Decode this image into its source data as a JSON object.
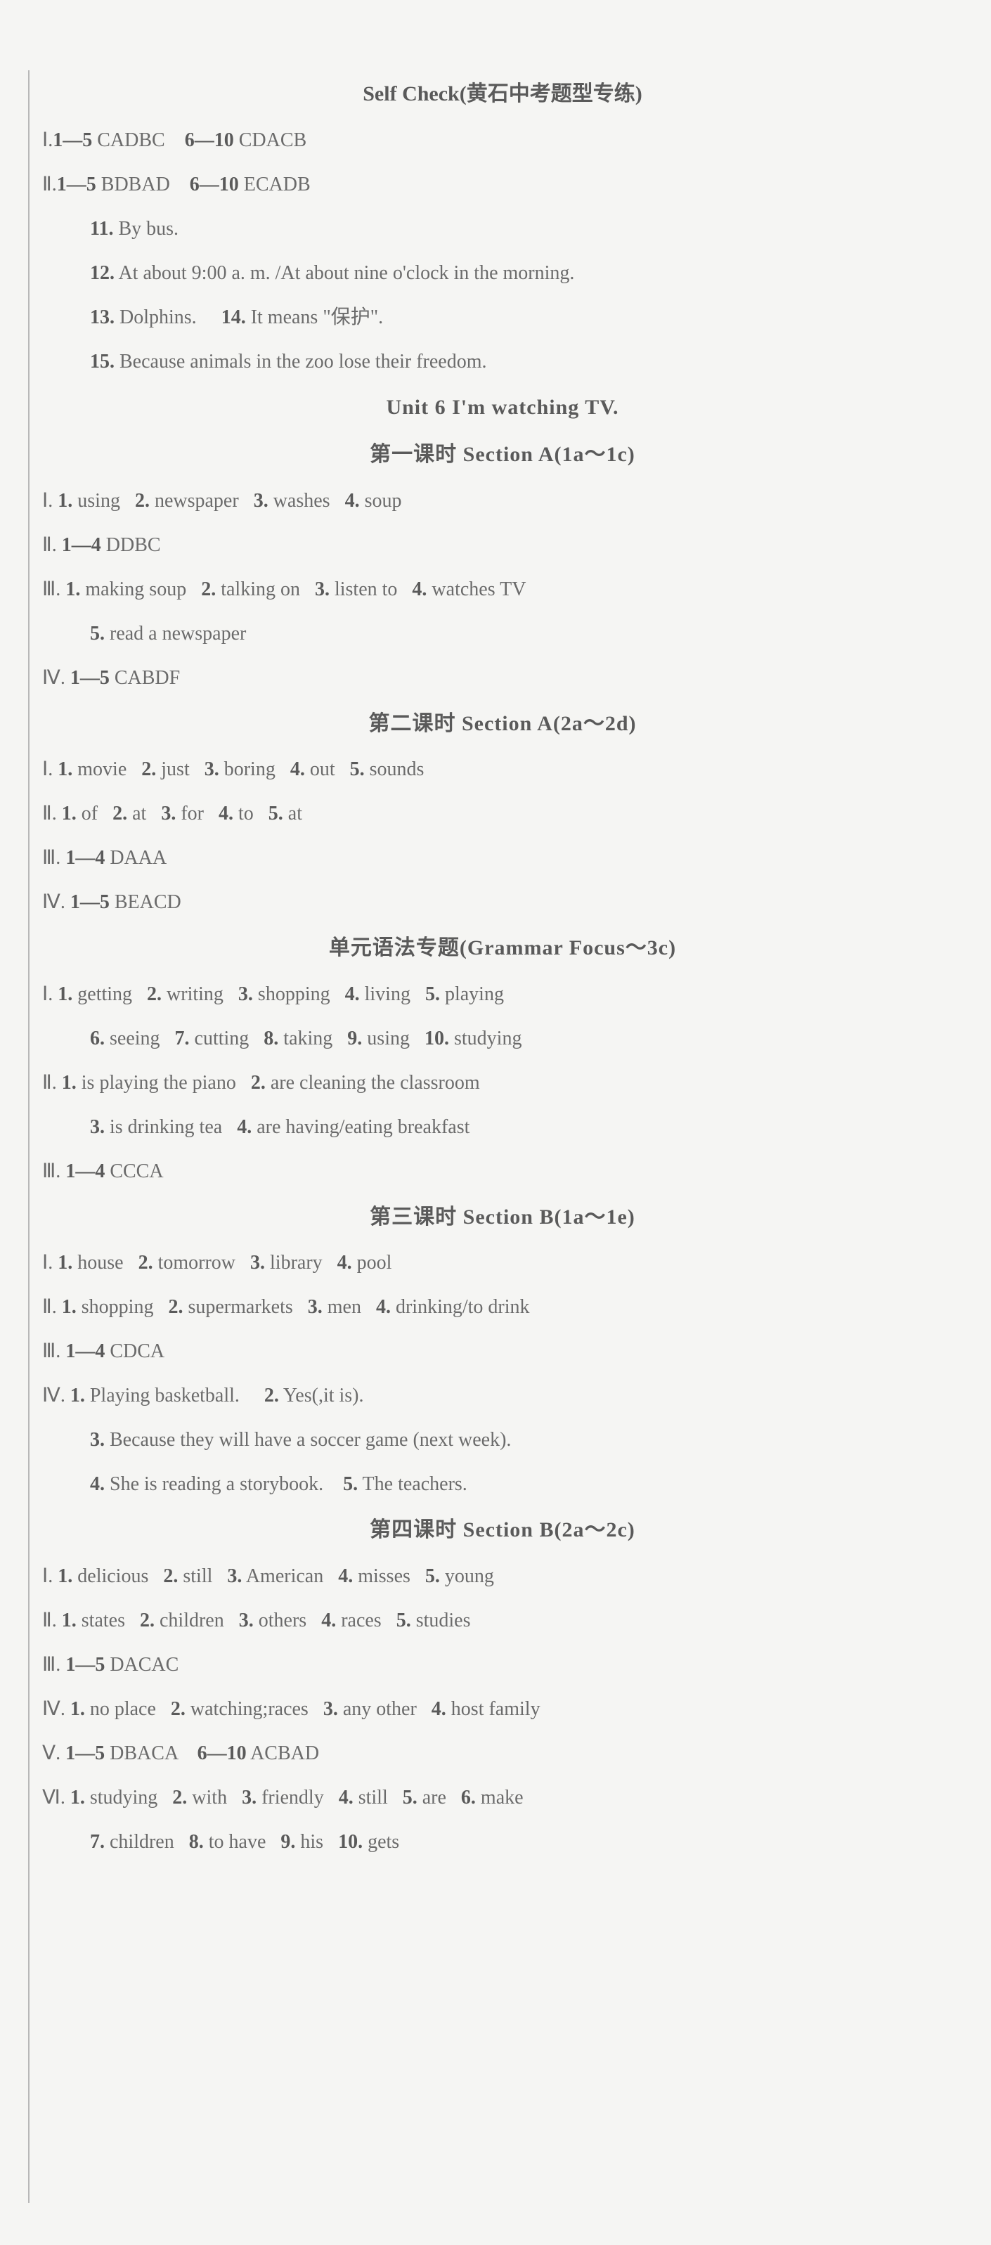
{
  "colors": {
    "background": "#f5f5f3",
    "text": "#6b6b6b",
    "bold_text": "#5a5a5a",
    "line": "#b8b8b8",
    "edge": "#888"
  },
  "typography": {
    "body_fontsize": 28,
    "title_fontsize": 30,
    "line_height": 2.25,
    "font_family": "Times New Roman"
  },
  "self_check": {
    "title": "Self Check(黄石中考题型专练)",
    "row1_label": "Ⅰ.",
    "row1_a": "1—5",
    "row1_a_val": " CADBC",
    "row1_b": "6—10",
    "row1_b_val": " CDACB",
    "row2_label": "Ⅱ.",
    "row2_a": "1—5",
    "row2_a_val": " BDBAD",
    "row2_b": "6—10",
    "row2_b_val": " ECADB",
    "q11_num": "11.",
    "q11": " By bus.",
    "q12_num": "12.",
    "q12": " At about 9:00 a. m. /At about nine o'clock in the morning.",
    "q13_num": "13.",
    "q13": " Dolphins.",
    "q14_num": "14.",
    "q14": " It means \"保护\".",
    "q15_num": "15.",
    "q15": " Because animals in the zoo lose their freedom."
  },
  "unit6": {
    "title": "Unit 6   I'm watching TV.",
    "lesson1": {
      "title": "第一课时   Section A(1a～1c)",
      "r1_label": "Ⅰ.",
      "r1_1n": " 1.",
      "r1_1": " using",
      "r1_2n": "2.",
      "r1_2": " newspaper",
      "r1_3n": "3.",
      "r1_3": " washes",
      "r1_4n": "4.",
      "r1_4": " soup",
      "r2_label": "Ⅱ.",
      "r2_a": " 1—4",
      "r2_val": " DDBC",
      "r3_label": "Ⅲ.",
      "r3_1n": " 1.",
      "r3_1": " making soup",
      "r3_2n": "2.",
      "r3_2": " talking on",
      "r3_3n": "3.",
      "r3_3": " listen to",
      "r3_4n": "4.",
      "r3_4": " watches TV",
      "r3_5n": "5.",
      "r3_5": " read a newspaper",
      "r4_label": "Ⅳ.",
      "r4_a": " 1—5",
      "r4_val": " CABDF"
    },
    "lesson2": {
      "title": "第二课时   Section A(2a～2d)",
      "r1_label": "Ⅰ.",
      "r1_1n": " 1.",
      "r1_1": " movie",
      "r1_2n": "2.",
      "r1_2": " just",
      "r1_3n": "3.",
      "r1_3": " boring",
      "r1_4n": "4.",
      "r1_4": " out",
      "r1_5n": "5.",
      "r1_5": " sounds",
      "r2_label": "Ⅱ.",
      "r2_1n": " 1.",
      "r2_1": " of",
      "r2_2n": "2.",
      "r2_2": " at",
      "r2_3n": "3.",
      "r2_3": " for",
      "r2_4n": "4.",
      "r2_4": " to",
      "r2_5n": "5.",
      "r2_5": " at",
      "r3_label": "Ⅲ.",
      "r3_a": " 1—4",
      "r3_val": " DAAA",
      "r4_label": "Ⅳ.",
      "r4_a": " 1—5",
      "r4_val": " BEACD"
    },
    "grammar": {
      "title": "单元语法专题(Grammar Focus～3c)",
      "r1_label": "Ⅰ.",
      "r1_1n": " 1.",
      "r1_1": " getting",
      "r1_2n": "2.",
      "r1_2": " writing",
      "r1_3n": "3.",
      "r1_3": " shopping",
      "r1_4n": "4.",
      "r1_4": " living",
      "r1_5n": "5.",
      "r1_5": " playing",
      "r1_6n": "6.",
      "r1_6": " seeing",
      "r1_7n": "7.",
      "r1_7": " cutting",
      "r1_8n": "8.",
      "r1_8": " taking",
      "r1_9n": "9.",
      "r1_9": " using",
      "r1_10n": "10.",
      "r1_10": " studying",
      "r2_label": "Ⅱ.",
      "r2_1n": " 1.",
      "r2_1": " is playing the piano",
      "r2_2n": "2.",
      "r2_2": " are cleaning the classroom",
      "r2_3n": "3.",
      "r2_3": " is drinking tea",
      "r2_4n": "4.",
      "r2_4": " are having/eating breakfast",
      "r3_label": "Ⅲ.",
      "r3_a": " 1—4",
      "r3_val": " CCCA"
    },
    "lesson3": {
      "title": "第三课时   Section B(1a～1e)",
      "r1_label": "Ⅰ.",
      "r1_1n": " 1.",
      "r1_1": " house",
      "r1_2n": "2.",
      "r1_2": " tomorrow",
      "r1_3n": "3.",
      "r1_3": " library",
      "r1_4n": "4.",
      "r1_4": " pool",
      "r2_label": "Ⅱ.",
      "r2_1n": " 1.",
      "r2_1": " shopping",
      "r2_2n": "2.",
      "r2_2": " supermarkets",
      "r2_3n": "3.",
      "r2_3": " men",
      "r2_4n": "4.",
      "r2_4": " drinking/to drink",
      "r3_label": "Ⅲ.",
      "r3_a": " 1—4",
      "r3_val": " CDCA",
      "r4_label": "Ⅳ.",
      "r4_1n": " 1.",
      "r4_1": " Playing basketball.",
      "r4_2n": "2.",
      "r4_2": " Yes(,it is).",
      "r4_3n": "3.",
      "r4_3": " Because they will have a soccer game (next week).",
      "r4_4n": "4.",
      "r4_4": " She is reading a storybook.",
      "r4_5n": "5.",
      "r4_5": " The teachers."
    },
    "lesson4": {
      "title": "第四课时   Section B(2a～2c)",
      "r1_label": "Ⅰ.",
      "r1_1n": " 1.",
      "r1_1": " delicious",
      "r1_2n": "2.",
      "r1_2": " still",
      "r1_3n": "3.",
      "r1_3": " American",
      "r1_4n": "4.",
      "r1_4": " misses",
      "r1_5n": "5.",
      "r1_5": " young",
      "r2_label": "Ⅱ.",
      "r2_1n": " 1.",
      "r2_1": " states",
      "r2_2n": "2.",
      "r2_2": " children",
      "r2_3n": "3.",
      "r2_3": " others",
      "r2_4n": "4.",
      "r2_4": " races",
      "r2_5n": "5.",
      "r2_5": " studies",
      "r3_label": "Ⅲ.",
      "r3_a": " 1—5",
      "r3_val": " DACAC",
      "r4_label": "Ⅳ.",
      "r4_1n": " 1.",
      "r4_1": " no place",
      "r4_2n": "2.",
      "r4_2": " watching;races",
      "r4_3n": "3.",
      "r4_3": " any other",
      "r4_4n": "4.",
      "r4_4": " host family",
      "r5_label": "Ⅴ.",
      "r5_a": " 1—5",
      "r5_a_val": " DBACA",
      "r5_b": "6—10",
      "r5_b_val": " ACBAD",
      "r6_label": "Ⅵ.",
      "r6_1n": " 1.",
      "r6_1": " studying",
      "r6_2n": "2.",
      "r6_2": " with",
      "r6_3n": "3.",
      "r6_3": " friendly",
      "r6_4n": "4.",
      "r6_4": " still",
      "r6_5n": "5.",
      "r6_5": " are",
      "r6_6n": "6.",
      "r6_6": " make",
      "r6_7n": "7.",
      "r6_7": " children",
      "r6_8n": "8.",
      "r6_8": " to have",
      "r6_9n": "9.",
      "r6_9": " his",
      "r6_10n": "10.",
      "r6_10": " gets"
    }
  }
}
